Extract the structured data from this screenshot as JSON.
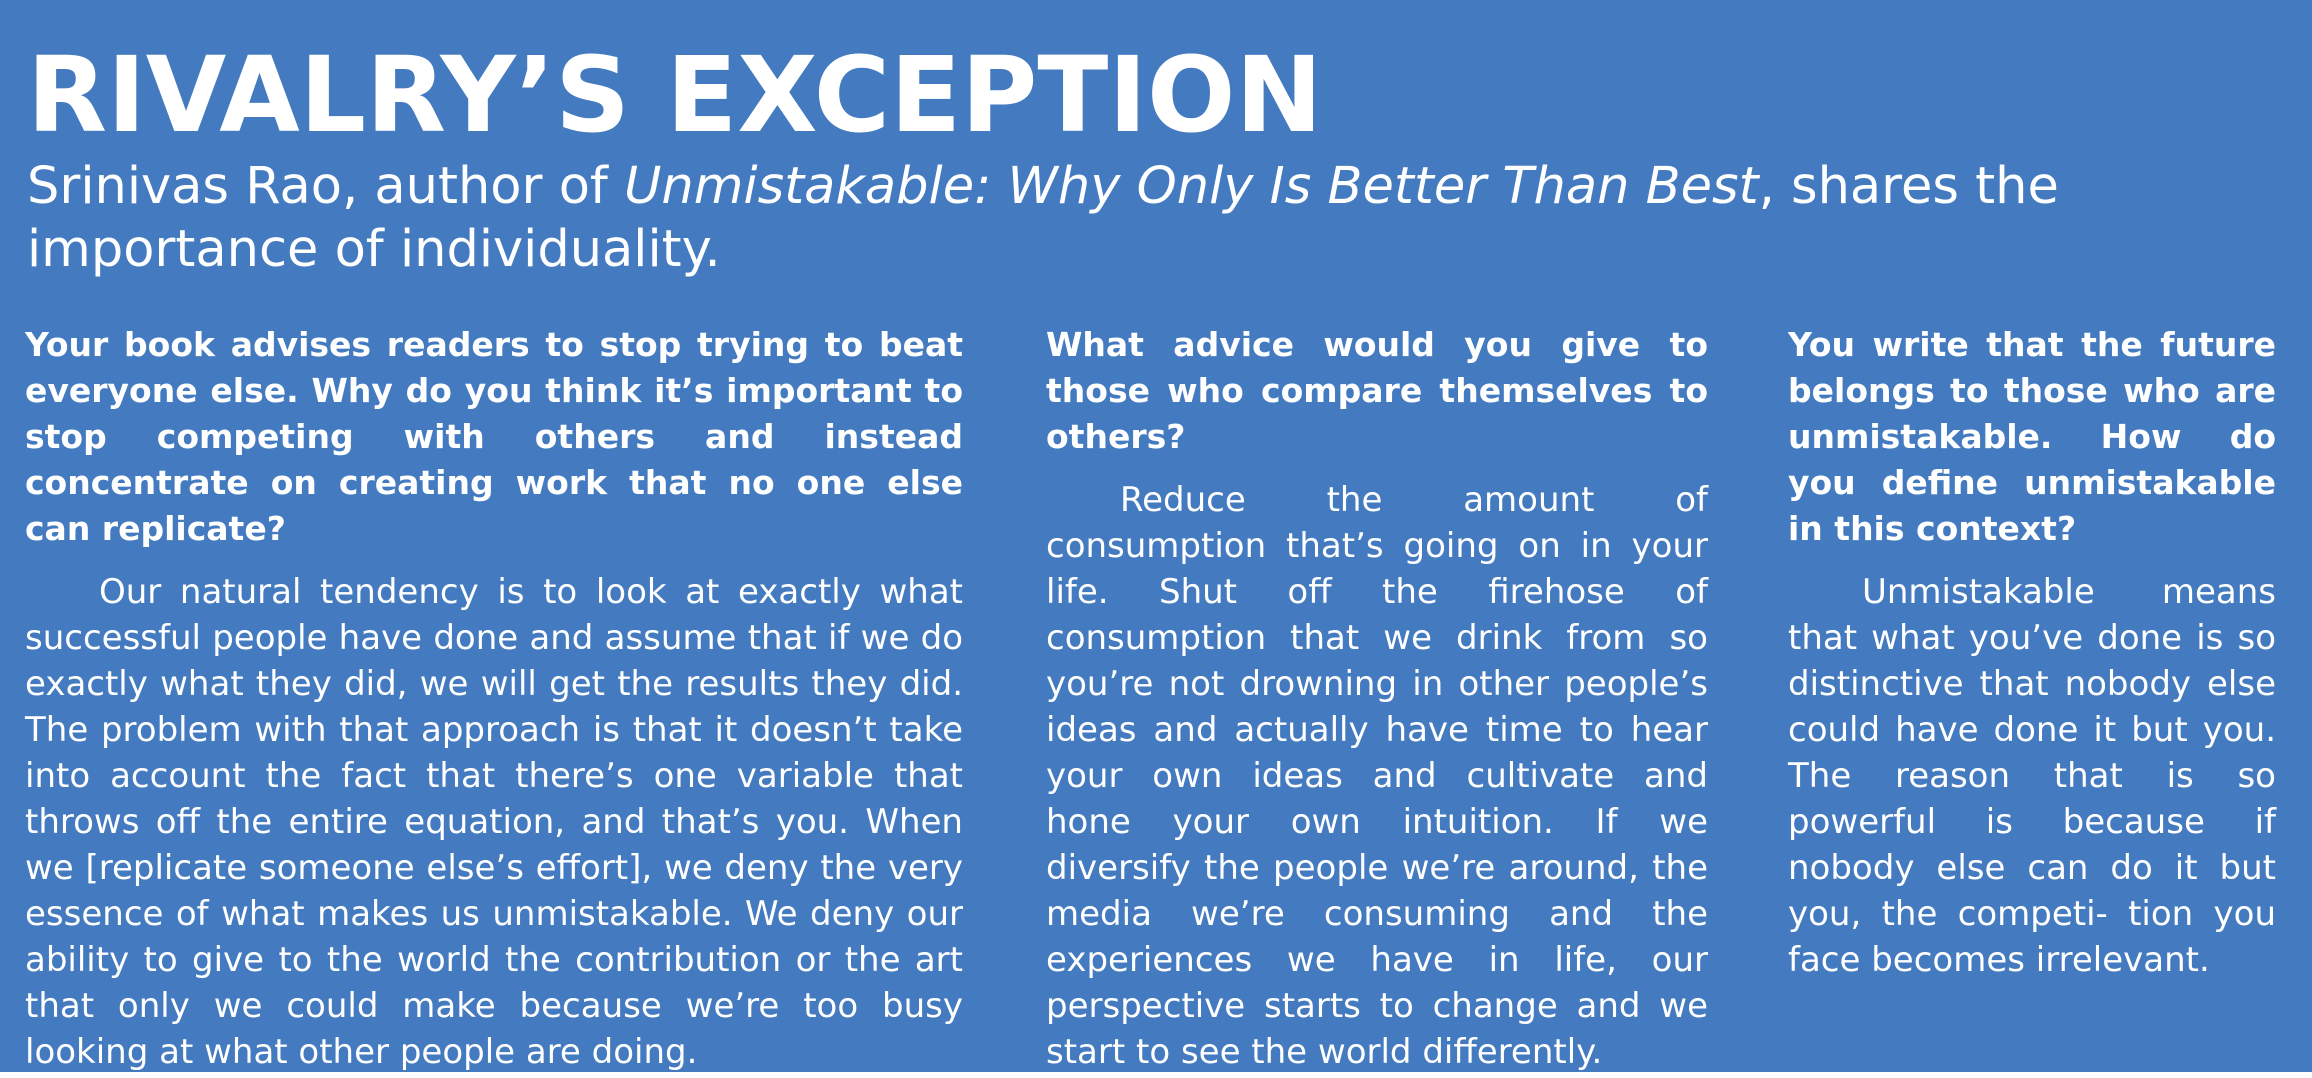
{
  "article": {
    "title": "RIVALRY’S EXCEPTION",
    "subtitle_lead": "Srinivas Rao, author of ",
    "subtitle_book": "Unmistakable: Why Only Is Better Than Best",
    "subtitle_tail": ", shares the importance of individuality.",
    "qa": [
      {
        "question": "Your book advises readers to stop trying to beat everyone else. Why do you think it’s important to stop competing with others and instead concentrate on creating work that no one else can replicate?",
        "answer": "Our natural tendency is to look at exactly what successful people have done and assume that if we do exactly what they did, we will get the results they did. The problem with that approach is that it doesn’t take into account the fact that there’s one variable that throws off the entire equation, and that’s you. When we [replicate someone else’s effort], we deny the very essence of what makes us unmistakable. We deny our ability to give to the world the contribution or the art that only we could make because we’re too busy looking at what other people are doing."
      },
      {
        "question": "What advice would you give to those who compare themselves to others?",
        "answer": "Reduce the amount of consumption that’s going on in your life. Shut off the firehose of consumption that we drink from so you’re not drowning in other people’s ideas and actually have time to hear your own ideas and cultivate and hone your own intuition. If we diversify the people we’re around, the media we’re consuming and the experiences we have in life, our perspective starts to change and we start to see the world differently."
      },
      {
        "question": "You write that the future belongs to those who are unmistakable. How do you define unmistakable in this context?",
        "answer": "Unmistakable means that what you’ve done is so distinctive that nobody else could have done it but you. The reason that is so powerful is because if nobody else can do it but you, the competi- tion you face becomes irrelevant."
      }
    ]
  },
  "colors": {
    "panel_background": "#437ac0",
    "text": "#ffffff",
    "page_background": "#ffffff"
  }
}
